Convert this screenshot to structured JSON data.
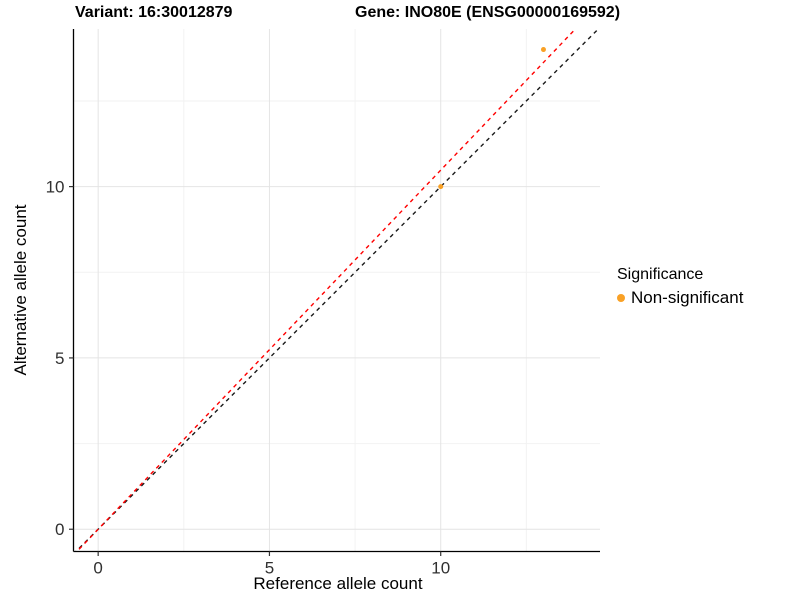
{
  "titles": {
    "left": "Variant: 16:30012879",
    "right": "Gene: INO80E (ENSG00000169592)"
  },
  "axes": {
    "x_label": "Reference allele count",
    "y_label": "Alternative allele count"
  },
  "legend": {
    "title": "Significance",
    "items": [
      {
        "label": "Non-significant",
        "color": "#F9A126"
      }
    ]
  },
  "chart_data": {
    "type": "scatter",
    "title": "Variant: 16:30012879  /  Gene: INO80E (ENSG00000169592)",
    "xlabel": "Reference allele count",
    "ylabel": "Alternative allele count",
    "xlim": [
      -0.72,
      14.65
    ],
    "ylim": [
      -0.65,
      14.6
    ],
    "x_ticks": [
      0,
      5,
      10
    ],
    "y_ticks": [
      0,
      5,
      10
    ],
    "x_minor_ticks": [
      2.5,
      7.5,
      12.5
    ],
    "y_minor_ticks": [
      2.5,
      7.5,
      12.5
    ],
    "grid": true,
    "legend_position": "right",
    "series": [
      {
        "name": "Non-significant",
        "color": "#F9A126",
        "points": [
          {
            "x": 10,
            "y": 10
          },
          {
            "x": 13,
            "y": 14
          }
        ]
      }
    ],
    "reference_lines": [
      {
        "name": "identity-line",
        "slope": 1.0,
        "intercept": 0,
        "color": "#1A1A1A",
        "style": "dashed"
      },
      {
        "name": "fit-line",
        "slope": 1.048,
        "intercept": 0,
        "color": "#FF0000",
        "style": "dashed"
      }
    ]
  },
  "style": {
    "grid_major": "#E4E4E4",
    "grid_minor": "#F2F2F2",
    "axis_line": "#000000",
    "tick_color": "#333333",
    "tick_label_color": "#303030",
    "point_radius": 2.5,
    "legend_dot_color": "#F9A126"
  }
}
